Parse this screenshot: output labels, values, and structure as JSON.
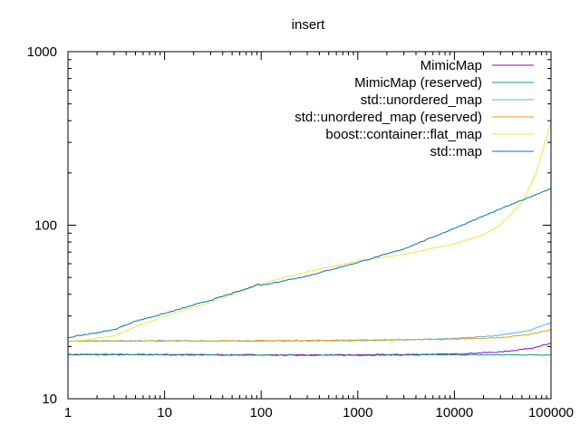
{
  "chart_data": {
    "type": "line",
    "title": "insert",
    "xlabel": "",
    "ylabel": "",
    "xscale": "log",
    "yscale": "log",
    "xlim": [
      1,
      100000
    ],
    "ylim": [
      10,
      1000
    ],
    "x_ticks": [
      {
        "value": 1,
        "label": "1"
      },
      {
        "value": 10,
        "label": "10"
      },
      {
        "value": 100,
        "label": "100"
      },
      {
        "value": 1000,
        "label": "1000"
      },
      {
        "value": 10000,
        "label": "10000"
      },
      {
        "value": 100000,
        "label": "100000"
      }
    ],
    "y_ticks": [
      {
        "value": 10,
        "label": "10"
      },
      {
        "value": 100,
        "label": "100"
      },
      {
        "value": 1000,
        "label": "1000"
      }
    ],
    "grid": false,
    "legend_position": "top-right",
    "series": [
      {
        "name": "MimicMap",
        "color": "#9400d3",
        "points": [
          [
            1,
            18
          ],
          [
            10,
            18
          ],
          [
            100,
            17.9
          ],
          [
            1000,
            17.9
          ],
          [
            10000,
            18.1
          ],
          [
            30000,
            18.6
          ],
          [
            60000,
            19.5
          ],
          [
            100000,
            20.8
          ]
        ]
      },
      {
        "name": "MimicMap (reserved)",
        "color": "#009e73",
        "points": [
          [
            1,
            17.9
          ],
          [
            10,
            17.9
          ],
          [
            100,
            17.8
          ],
          [
            1000,
            17.8
          ],
          [
            10000,
            17.9
          ],
          [
            100000,
            17.9
          ]
        ]
      },
      {
        "name": "std::unordered_map",
        "color": "#56b4e9",
        "points": [
          [
            1,
            21.5
          ],
          [
            10,
            21.6
          ],
          [
            100,
            21.5
          ],
          [
            1000,
            21.6
          ],
          [
            10000,
            22.2
          ],
          [
            30000,
            23.2
          ],
          [
            60000,
            24.8
          ],
          [
            100000,
            27.5
          ]
        ]
      },
      {
        "name": "std::unordered_map (reserved)",
        "color": "#e69f00",
        "points": [
          [
            1,
            21.5
          ],
          [
            10,
            21.5
          ],
          [
            100,
            21.6
          ],
          [
            1000,
            21.8
          ],
          [
            10000,
            22
          ],
          [
            30000,
            22.5
          ],
          [
            60000,
            23.5
          ],
          [
            100000,
            25
          ]
        ]
      },
      {
        "name": "boost::container::flat_map",
        "color": "#f0e442",
        "points": [
          [
            1,
            21.2
          ],
          [
            3,
            23
          ],
          [
            5,
            26
          ],
          [
            10,
            30
          ],
          [
            30,
            36
          ],
          [
            100,
            46
          ],
          [
            300,
            54
          ],
          [
            1000,
            62
          ],
          [
            3000,
            68
          ],
          [
            10000,
            78
          ],
          [
            20000,
            88
          ],
          [
            30000,
            100
          ],
          [
            50000,
            135
          ],
          [
            70000,
            200
          ],
          [
            100000,
            390
          ]
        ]
      },
      {
        "name": "std::map",
        "color": "#0072b2",
        "points": [
          [
            1,
            22.5
          ],
          [
            3,
            25
          ],
          [
            5,
            28
          ],
          [
            10,
            31
          ],
          [
            30,
            37
          ],
          [
            80,
            44
          ],
          [
            90,
            46
          ],
          [
            100,
            45
          ],
          [
            300,
            51
          ],
          [
            1000,
            61
          ],
          [
            3000,
            73
          ],
          [
            10000,
            96
          ],
          [
            30000,
            124
          ],
          [
            100000,
            163
          ]
        ]
      }
    ]
  }
}
